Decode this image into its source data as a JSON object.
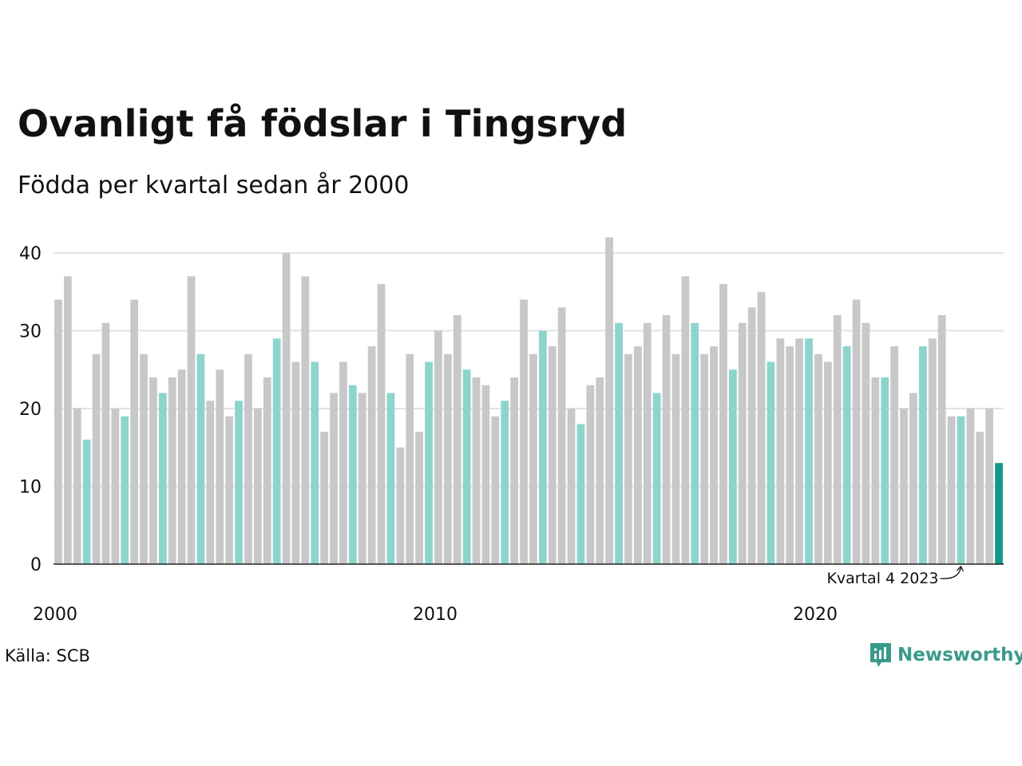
{
  "title": "Ovanligt få födslar i Tingsryd",
  "subtitle": "Födda per kvartal sedan år 2000",
  "source": "Källa: SCB",
  "brand": "Newsworthy",
  "colors": {
    "default": "#c8c8c8",
    "q4": "#8dd4cc",
    "highlight": "#15988a",
    "grid": "#e3e3e3",
    "axis": "#222222",
    "brand": "#3a9a8a"
  },
  "chart_data": {
    "type": "bar",
    "start": {
      "year": 2000,
      "quarter": 1
    },
    "values": [
      34,
      37,
      20,
      16,
      27,
      31,
      20,
      19,
      34,
      27,
      24,
      22,
      24,
      25,
      37,
      27,
      21,
      25,
      19,
      21,
      27,
      20,
      24,
      29,
      40,
      26,
      37,
      26,
      17,
      22,
      26,
      23,
      22,
      28,
      36,
      22,
      15,
      27,
      17,
      26,
      30,
      27,
      32,
      25,
      24,
      23,
      19,
      21,
      24,
      34,
      27,
      30,
      28,
      33,
      20,
      18,
      23,
      24,
      42,
      31,
      27,
      28,
      31,
      22,
      32,
      27,
      37,
      31,
      27,
      28,
      36,
      25,
      31,
      33,
      35,
      26,
      29,
      28,
      29,
      29,
      27,
      26,
      32,
      28,
      34,
      31,
      24,
      24,
      28,
      20,
      22,
      28,
      29,
      32,
      19,
      19,
      20,
      17,
      20,
      13
    ],
    "xticks": [
      "2000",
      "2010",
      "2020"
    ],
    "yticks": [
      0,
      10,
      20,
      30,
      40
    ],
    "ylim": [
      0,
      42
    ],
    "annotation": "Kvartal 4 2023",
    "grid": true
  }
}
